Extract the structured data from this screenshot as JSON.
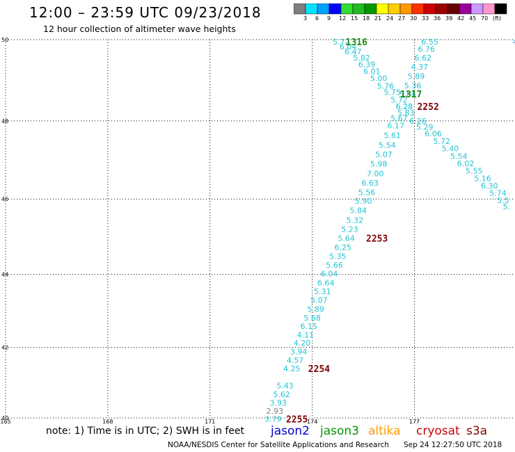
{
  "header": {
    "title": "12:00 – 23:59 UTC 09/23/2018",
    "subtitle": "12 hour collection of altimeter wave heights"
  },
  "colorbar": {
    "colors": [
      "#7f7f7f",
      "#00e5ff",
      "#00a0ff",
      "#0000ff",
      "#33dd33",
      "#22bb22",
      "#009900",
      "#ffff00",
      "#ffcc00",
      "#ff9900",
      "#ff3300",
      "#cc0000",
      "#990000",
      "#660000",
      "#990099",
      "#cc99ff",
      "#ff99cc",
      "#000000"
    ],
    "labels": [
      "3",
      "6",
      "9",
      "12",
      "15",
      "18",
      "21",
      "24",
      "27",
      "30",
      "33",
      "36",
      "39",
      "42",
      "45",
      "70",
      "(ft)"
    ]
  },
  "axes": {
    "lat_labels": [
      "50",
      "48",
      "46",
      "44",
      "42",
      "40"
    ],
    "lon_labels": [
      "165",
      "168",
      "171",
      "174",
      "177"
    ]
  },
  "observations": [
    {
      "lon": 174.85,
      "lat": 49.95,
      "value": "5.72",
      "color": "#22c4d4"
    },
    {
      "lon": 175.05,
      "lat": 49.83,
      "value": "6.04",
      "color": "#22c4d4"
    },
    {
      "lon": 175.2,
      "lat": 49.71,
      "value": "6.47",
      "color": "#22c4d4"
    },
    {
      "lon": 175.45,
      "lat": 49.56,
      "value": "5.82",
      "color": "#22c4d4"
    },
    {
      "lon": 175.6,
      "lat": 49.4,
      "value": "6.39",
      "color": "#22c4d4"
    },
    {
      "lon": 175.75,
      "lat": 49.23,
      "value": "6.01",
      "color": "#22c4d4"
    },
    {
      "lon": 175.95,
      "lat": 49.06,
      "value": "5.00",
      "color": "#22c4d4"
    },
    {
      "lon": 176.15,
      "lat": 48.87,
      "value": "5.76",
      "color": "#22c4d4"
    },
    {
      "lon": 176.35,
      "lat": 48.72,
      "value": "5.75",
      "color": "#22c4d4"
    },
    {
      "lon": 176.55,
      "lat": 48.53,
      "value": "5.72",
      "color": "#22c4d4"
    },
    {
      "lon": 176.7,
      "lat": 48.36,
      "value": "6.28",
      "color": "#22c4d4"
    },
    {
      "lon": 177.45,
      "lat": 49.95,
      "value": "6.55",
      "color": "#22c4d4"
    },
    {
      "lon": 177.35,
      "lat": 49.77,
      "value": "6.76",
      "color": "#22c4d4"
    },
    {
      "lon": 177.25,
      "lat": 49.56,
      "value": "6.62",
      "color": "#22c4d4"
    },
    {
      "lon": 177.15,
      "lat": 49.34,
      "value": "4.37",
      "color": "#22c4d4"
    },
    {
      "lon": 177.05,
      "lat": 49.11,
      "value": "5.89",
      "color": "#22c4d4"
    },
    {
      "lon": 176.95,
      "lat": 48.88,
      "value": "5.36",
      "color": "#22c4d4"
    },
    {
      "lon": 176.8,
      "lat": 48.67,
      "value": "5.84",
      "color": "#22c4d4"
    },
    {
      "lon": 176.7,
      "lat": 48.36,
      "value": "6.23",
      "color": "#22c4d4"
    },
    {
      "lon": 176.75,
      "lat": 48.21,
      "value": "5.83",
      "color": "#22c4d4"
    },
    {
      "lon": 176.55,
      "lat": 48.07,
      "value": "5.67",
      "color": "#22c4d4"
    },
    {
      "lon": 176.45,
      "lat": 47.88,
      "value": "6.17",
      "color": "#22c4d4"
    },
    {
      "lon": 176.35,
      "lat": 47.64,
      "value": "5.61",
      "color": "#22c4d4"
    },
    {
      "lon": 176.2,
      "lat": 47.39,
      "value": "5.54",
      "color": "#22c4d4"
    },
    {
      "lon": 176.1,
      "lat": 47.15,
      "value": "5.07",
      "color": "#22c4d4"
    },
    {
      "lon": 175.95,
      "lat": 46.91,
      "value": "5.98",
      "color": "#22c4d4"
    },
    {
      "lon": 175.85,
      "lat": 46.66,
      "value": "7.00",
      "color": "#22c4d4"
    },
    {
      "lon": 175.7,
      "lat": 46.42,
      "value": "6.63",
      "color": "#22c4d4"
    },
    {
      "lon": 175.6,
      "lat": 46.18,
      "value": "5.56",
      "color": "#22c4d4"
    },
    {
      "lon": 175.5,
      "lat": 45.95,
      "value": "5.90",
      "color": "#22c4d4"
    },
    {
      "lon": 175.35,
      "lat": 45.7,
      "value": "5.84",
      "color": "#22c4d4"
    },
    {
      "lon": 175.25,
      "lat": 45.45,
      "value": "5.32",
      "color": "#22c4d4"
    },
    {
      "lon": 175.1,
      "lat": 45.21,
      "value": "5.23",
      "color": "#22c4d4"
    },
    {
      "lon": 175.0,
      "lat": 44.97,
      "value": "5.64",
      "color": "#22c4d4"
    },
    {
      "lon": 174.9,
      "lat": 44.73,
      "value": "6.25",
      "color": "#22c4d4"
    },
    {
      "lon": 174.75,
      "lat": 44.49,
      "value": "5.35",
      "color": "#22c4d4"
    },
    {
      "lon": 174.65,
      "lat": 44.26,
      "value": "5.66",
      "color": "#22c4d4"
    },
    {
      "lon": 174.5,
      "lat": 44.02,
      "value": "6.04",
      "color": "#22c4d4"
    },
    {
      "lon": 174.4,
      "lat": 43.78,
      "value": "6.64",
      "color": "#22c4d4"
    },
    {
      "lon": 174.3,
      "lat": 43.54,
      "value": "5.31",
      "color": "#22c4d4"
    },
    {
      "lon": 174.2,
      "lat": 43.3,
      "value": "5.07",
      "color": "#22c4d4"
    },
    {
      "lon": 174.1,
      "lat": 43.06,
      "value": "5.89",
      "color": "#22c4d4"
    },
    {
      "lon": 174.0,
      "lat": 42.82,
      "value": "5.68",
      "color": "#22c4d4"
    },
    {
      "lon": 173.9,
      "lat": 42.59,
      "value": "6.15",
      "color": "#22c4d4"
    },
    {
      "lon": 173.8,
      "lat": 42.35,
      "value": "4.11",
      "color": "#22c4d4"
    },
    {
      "lon": 173.7,
      "lat": 42.12,
      "value": "4.20",
      "color": "#22c4d4"
    },
    {
      "lon": 173.6,
      "lat": 41.88,
      "value": "3.94",
      "color": "#22c4d4"
    },
    {
      "lon": 173.5,
      "lat": 41.64,
      "value": "4.57",
      "color": "#22c4d4"
    },
    {
      "lon": 173.4,
      "lat": 41.4,
      "value": "4.25",
      "color": "#22c4d4"
    },
    {
      "lon": 173.2,
      "lat": 40.92,
      "value": "5.43",
      "color": "#22c4d4"
    },
    {
      "lon": 173.1,
      "lat": 40.68,
      "value": "5.62",
      "color": "#22c4d4"
    },
    {
      "lon": 173.0,
      "lat": 40.44,
      "value": "3.93",
      "color": "#22c4d4"
    },
    {
      "lon": 172.9,
      "lat": 40.2,
      "value": "2.93",
      "color": "#808080"
    },
    {
      "lon": 172.85,
      "lat": 39.97,
      "value": "3.79",
      "color": "#22c4d4"
    },
    {
      "lon": 177.1,
      "lat": 48.0,
      "value": "6.26",
      "color": "#22c4d4"
    },
    {
      "lon": 177.3,
      "lat": 47.85,
      "value": "5.29",
      "color": "#22c4d4"
    },
    {
      "lon": 177.55,
      "lat": 47.68,
      "value": "6.06",
      "color": "#22c4d4"
    },
    {
      "lon": 177.8,
      "lat": 47.49,
      "value": "5.72",
      "color": "#22c4d4"
    },
    {
      "lon": 178.05,
      "lat": 47.3,
      "value": "5.40",
      "color": "#22c4d4"
    },
    {
      "lon": 178.3,
      "lat": 47.11,
      "value": "5.54",
      "color": "#22c4d4"
    },
    {
      "lon": 178.5,
      "lat": 46.92,
      "value": "6.02",
      "color": "#22c4d4"
    },
    {
      "lon": 178.75,
      "lat": 46.73,
      "value": "5.55",
      "color": "#22c4d4"
    },
    {
      "lon": 179.0,
      "lat": 46.54,
      "value": "5.16",
      "color": "#22c4d4"
    },
    {
      "lon": 179.2,
      "lat": 46.35,
      "value": "6.30",
      "color": "#22c4d4"
    },
    {
      "lon": 179.45,
      "lat": 46.16,
      "value": "5.74",
      "color": "#22c4d4"
    },
    {
      "lon": 179.6,
      "lat": 45.97,
      "value": "5.5",
      "color": "#22c4d4"
    },
    {
      "lon": 179.7,
      "lat": 45.8,
      "value": "5.",
      "color": "#22c4d4"
    },
    {
      "lon": 179.95,
      "lat": 49.95,
      "value": "4",
      "color": "#22c4d4"
    }
  ],
  "pass_times": [
    {
      "lon": 175.3,
      "lat": 49.95,
      "value": "1316",
      "color": "#1a8a1a"
    },
    {
      "lon": 176.9,
      "lat": 48.67,
      "value": "1317",
      "color": "#1a8a1a"
    },
    {
      "lon": 177.4,
      "lat": 48.36,
      "value": "2252",
      "color": "#800000"
    },
    {
      "lon": 175.9,
      "lat": 44.97,
      "value": "2253",
      "color": "#800000"
    },
    {
      "lon": 174.2,
      "lat": 41.4,
      "value": "2254",
      "color": "#800000"
    },
    {
      "lon": 173.55,
      "lat": 39.97,
      "value": "2255",
      "color": "#800000"
    }
  ],
  "footer": {
    "note": "note:  1) Time is in UTC;  2) SWH is in feet",
    "satellites": [
      {
        "name": "jason2",
        "color": "#0000cc"
      },
      {
        "name": "jason3",
        "color": "#009900"
      },
      {
        "name": "altika",
        "color": "#ff9900"
      },
      {
        "name": "cryosat",
        "color": "#cc0000"
      },
      {
        "name": "s3a",
        "color": "#800000"
      }
    ],
    "credit": "NOAA/NESDIS Center for Satellite Applications and Research",
    "timestamp": "Sep 24 12:27:50 UTC 2018"
  }
}
